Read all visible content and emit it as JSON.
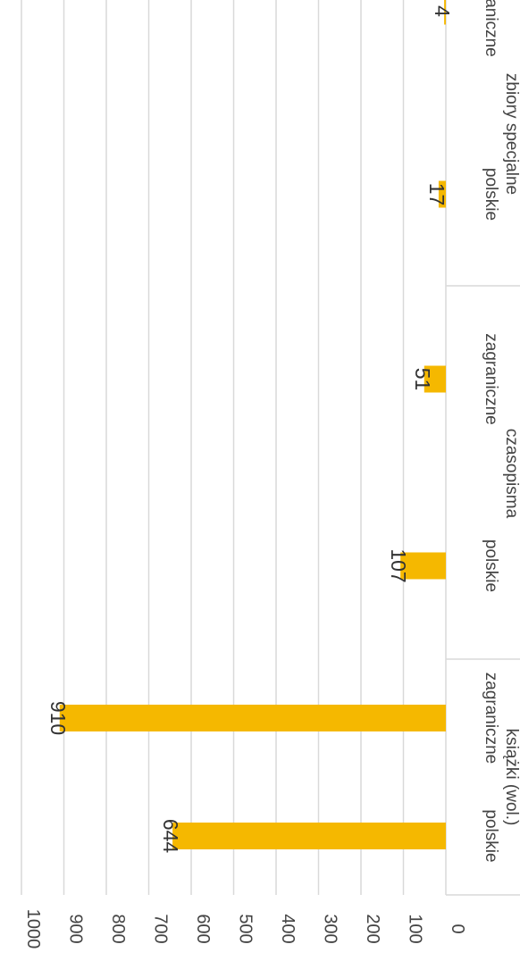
{
  "chart_data": {
    "type": "bar",
    "orientation": "vertical, rotated 90° clockwise",
    "title": "",
    "xlabel": "",
    "ylabel": "",
    "ylim": [
      0,
      1000
    ],
    "y_ticks": [
      "0",
      "100",
      "200",
      "300",
      "400",
      "500",
      "600",
      "700",
      "800",
      "900",
      "1000"
    ],
    "grid": true,
    "legend": "none",
    "bar_color": "#F5B800",
    "groups": [
      {
        "label": "książki (wol.)",
        "categories": [
          {
            "label": "polskie",
            "value": 644,
            "value_label": "644"
          },
          {
            "label": "zagraniczne",
            "value": 910,
            "value_label": "910"
          }
        ]
      },
      {
        "label": "czasopisma",
        "categories": [
          {
            "label": "polskie",
            "value": 107,
            "value_label": "107"
          },
          {
            "label": "zagraniczne",
            "value": 51,
            "value_label": "51"
          }
        ]
      },
      {
        "label": "zbiory specjalne",
        "categories": [
          {
            "label": "polskie",
            "value": 17,
            "value_label": "17"
          },
          {
            "label": "zagraniczne",
            "value": 4,
            "value_label": "4"
          }
        ]
      }
    ]
  }
}
